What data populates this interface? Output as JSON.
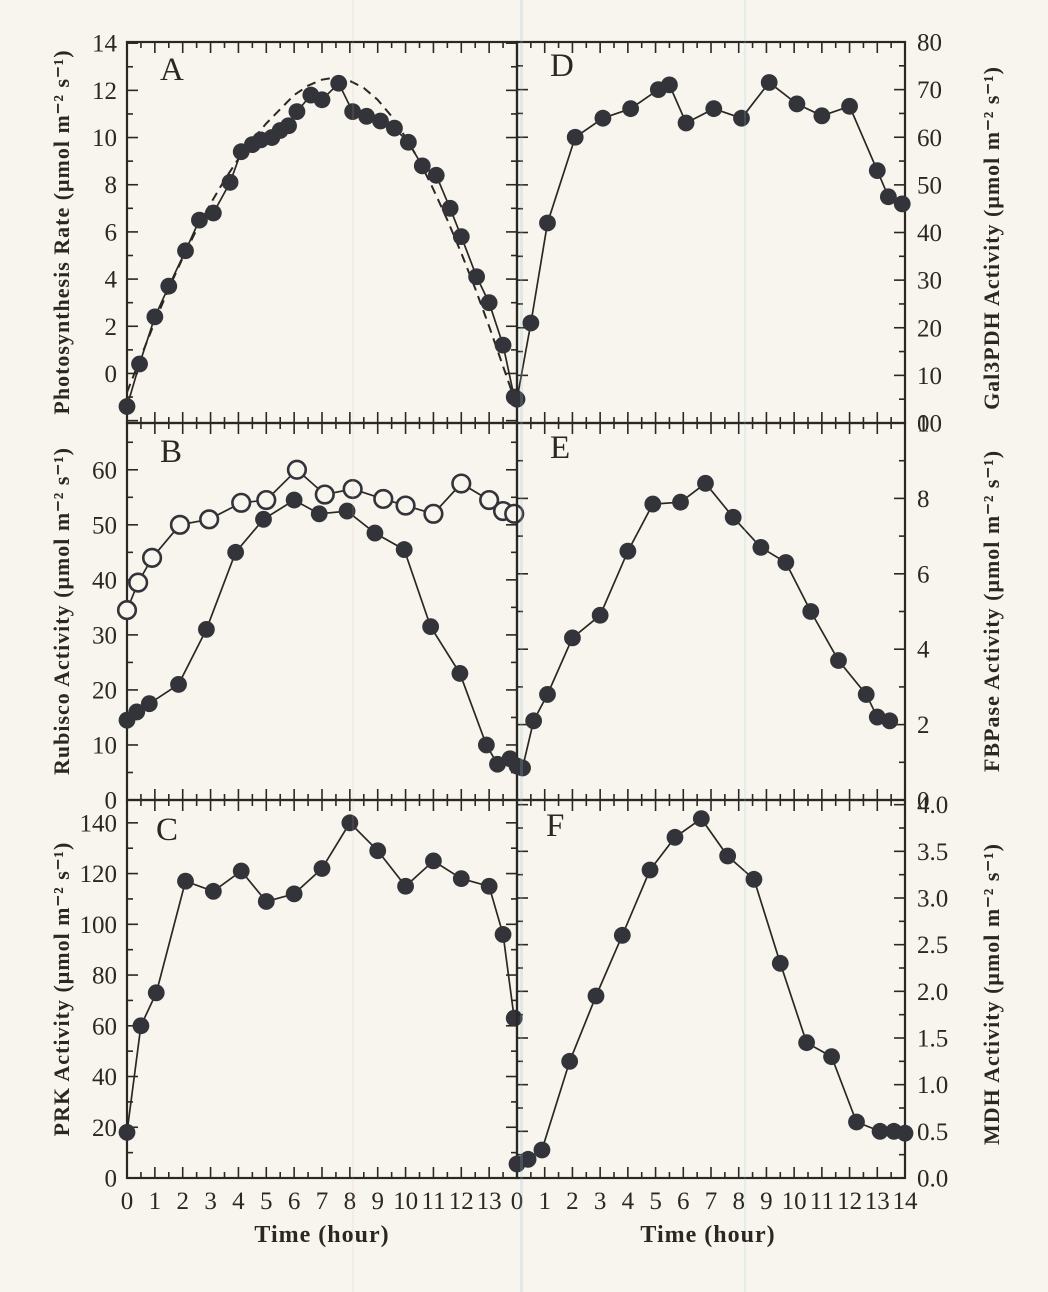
{
  "figure": {
    "background": "#f8f5ee",
    "ink_color": "#2b2722",
    "marker_color": "#33333a",
    "x_axis_label_left": "Time (hour)",
    "x_axis_label_right": "Time (hour)",
    "x_tick_labels_left": [
      "0",
      "1",
      "2",
      "3",
      "4",
      "5",
      "6",
      "7",
      "8",
      "9",
      "10",
      "11",
      "12",
      "13"
    ],
    "x_tick_labels_right": [
      "0",
      "1",
      "2",
      "3",
      "4",
      "5",
      "6",
      "7",
      "8",
      "9",
      "10",
      "11",
      "12",
      "13",
      "14"
    ]
  },
  "chart_data": [
    {
      "panel_label": "A",
      "type": "scatter",
      "position": "top-left",
      "label_side": "left",
      "show_x_labels": false,
      "ylabel": "Photosynthesis Rate (μmol m⁻² s⁻¹)",
      "x_range": [
        0,
        14
      ],
      "y_range": [
        -2.1,
        14.05
      ],
      "y_major": [
        -2,
        0,
        2,
        4,
        6,
        8,
        10,
        12,
        14
      ],
      "y_minor_step": 1,
      "y_labels": [
        [
          0,
          "0"
        ],
        [
          2,
          "2"
        ],
        [
          4,
          "4"
        ],
        [
          6,
          "6"
        ],
        [
          8,
          "8"
        ],
        [
          10,
          "10"
        ],
        [
          12,
          "12"
        ],
        [
          14,
          "14"
        ]
      ],
      "series": [
        {
          "name": "model-curve",
          "style": "dashed",
          "marker": "none",
          "x": [
            0,
            0.5,
            1,
            1.5,
            2,
            2.5,
            3,
            3.5,
            4,
            4.5,
            5,
            5.5,
            6,
            6.5,
            7,
            7.5,
            8,
            8.5,
            9,
            9.5,
            10,
            10.5,
            11,
            11.5,
            12,
            12.5,
            13,
            13.5,
            14
          ],
          "y": [
            -0.8,
            0.7,
            2.2,
            3.6,
            4.9,
            6.1,
            7.2,
            8.2,
            9.1,
            9.9,
            10.6,
            11.2,
            11.8,
            12.2,
            12.45,
            12.55,
            12.4,
            12.1,
            11.6,
            10.9,
            10.0,
            9.0,
            7.8,
            6.5,
            5.1,
            3.6,
            2.0,
            0.3,
            -1.4
          ]
        },
        {
          "name": "measured-photosynthesis",
          "style": "line",
          "marker": "filled",
          "x": [
            0,
            0.45,
            1,
            1.5,
            2.1,
            2.6,
            3.1,
            3.7,
            4.1,
            4.5,
            4.8,
            5.2,
            5.5,
            5.8,
            6.1,
            6.6,
            7.0,
            7.6,
            8.1,
            8.6,
            9.1,
            9.6,
            10.1,
            10.6,
            11.1,
            11.6,
            12.0,
            12.55,
            13.0,
            13.5,
            13.9
          ],
          "y": [
            -1.4,
            0.4,
            2.4,
            3.7,
            5.2,
            6.5,
            6.8,
            8.1,
            9.4,
            9.7,
            9.9,
            10.0,
            10.3,
            10.5,
            11.1,
            11.8,
            11.6,
            12.3,
            11.1,
            10.9,
            10.7,
            10.4,
            9.8,
            8.8,
            8.4,
            7.0,
            5.8,
            4.1,
            3.0,
            1.2,
            -1.0
          ]
        }
      ]
    },
    {
      "panel_label": "D",
      "type": "scatter",
      "position": "top-right",
      "label_side": "right",
      "show_x_labels": false,
      "ylabel": "Gal3PDH Activity (μmol m⁻² s⁻¹)",
      "x_range": [
        0,
        14
      ],
      "y_range": [
        0,
        80
      ],
      "y_major": [
        0,
        10,
        20,
        30,
        40,
        50,
        60,
        70,
        80
      ],
      "y_minor_step": 5,
      "y_labels": [
        [
          0,
          "0"
        ],
        [
          10,
          "10"
        ],
        [
          20,
          "20"
        ],
        [
          30,
          "30"
        ],
        [
          40,
          "40"
        ],
        [
          50,
          "50"
        ],
        [
          60,
          "60"
        ],
        [
          70,
          "70"
        ],
        [
          80,
          "80"
        ]
      ],
      "series": [
        {
          "name": "gal3pdh-activity",
          "style": "line",
          "marker": "filled",
          "x": [
            0,
            0.5,
            1.1,
            2.1,
            3.1,
            4.1,
            5.1,
            5.5,
            6.1,
            7.1,
            8.1,
            9.1,
            10.1,
            11,
            12,
            13,
            13.4,
            13.9
          ],
          "y": [
            5,
            21,
            42,
            60,
            64,
            66,
            70,
            71,
            63,
            66,
            64,
            71.5,
            67,
            64.5,
            66.5,
            53,
            47.5,
            46
          ]
        }
      ]
    },
    {
      "panel_label": "B",
      "type": "scatter",
      "position": "middle-left",
      "label_side": "left",
      "show_x_labels": false,
      "ylabel": "Rubisco Activity (μmol m⁻² s⁻¹)",
      "x_range": [
        0,
        14
      ],
      "y_range": [
        0,
        68.5
      ],
      "y_major": [
        0,
        10,
        20,
        30,
        40,
        50,
        60
      ],
      "y_minor_step": 5,
      "y_labels": [
        [
          0,
          "0"
        ],
        [
          10,
          "10"
        ],
        [
          20,
          "20"
        ],
        [
          30,
          "30"
        ],
        [
          40,
          "40"
        ],
        [
          50,
          "50"
        ],
        [
          60,
          "60"
        ]
      ],
      "series": [
        {
          "name": "rubisco-total-activity",
          "style": "line",
          "marker": "filled",
          "x": [
            0,
            0.35,
            0.8,
            1.85,
            2.85,
            3.9,
            4.9,
            6,
            6.9,
            7.9,
            8.9,
            9.95,
            10.9,
            11.95,
            12.9,
            13.3,
            13.75
          ],
          "y": [
            14.5,
            16,
            17.5,
            21,
            31,
            45,
            51,
            54.5,
            52,
            52.5,
            48.5,
            45.5,
            31.5,
            23,
            10,
            6.5,
            7.5
          ]
        },
        {
          "name": "rubisco-initial-activity",
          "style": "line",
          "marker": "open",
          "x": [
            0,
            0.4,
            0.9,
            1.9,
            2.95,
            4.1,
            5,
            6.1,
            7.1,
            8.1,
            9.2,
            10,
            11,
            12,
            13,
            13.5,
            13.9
          ],
          "y": [
            34.5,
            39.5,
            44,
            50,
            51,
            54,
            54.5,
            60,
            55.5,
            56.5,
            54.7,
            53.5,
            52,
            57.5,
            54.5,
            52.5,
            52
          ]
        }
      ]
    },
    {
      "panel_label": "E",
      "type": "scatter",
      "position": "middle-right",
      "label_side": "right",
      "show_x_labels": false,
      "ylabel": "FBPase Activity (μmol m⁻² s⁻¹)",
      "x_range": [
        0,
        14
      ],
      "y_range": [
        0,
        10
      ],
      "y_major": [
        0,
        2,
        4,
        6,
        8,
        10
      ],
      "y_minor_step": 1,
      "y_labels": [
        [
          0,
          "0"
        ],
        [
          2,
          "2"
        ],
        [
          4,
          "4"
        ],
        [
          6,
          "6"
        ],
        [
          8,
          "8"
        ],
        [
          10,
          "10"
        ]
      ],
      "series": [
        {
          "name": "fbpase-activity",
          "style": "line",
          "marker": "filled",
          "x": [
            0,
            0.2,
            0.6,
            1.1,
            2,
            3,
            4,
            4.9,
            5.9,
            6.8,
            7.8,
            8.8,
            9.7,
            10.6,
            11.6,
            12.6,
            13.0,
            13.45
          ],
          "y": [
            0.9,
            0.85,
            2.1,
            2.8,
            4.3,
            4.9,
            6.6,
            7.85,
            7.9,
            8.4,
            7.5,
            6.7,
            6.3,
            5.0,
            3.7,
            2.8,
            2.2,
            2.1
          ]
        }
      ]
    },
    {
      "panel_label": "C",
      "type": "scatter",
      "position": "bottom-left",
      "label_side": "left",
      "show_x_labels": true,
      "ylabel": "PRK Activity (μmol m⁻² s⁻¹)",
      "x_range": [
        0,
        14
      ],
      "y_range": [
        0,
        149
      ],
      "y_major": [
        0,
        20,
        40,
        60,
        80,
        100,
        120,
        140
      ],
      "y_minor_step": 10,
      "y_labels": [
        [
          0,
          "0"
        ],
        [
          20,
          "20"
        ],
        [
          40,
          "40"
        ],
        [
          60,
          "60"
        ],
        [
          80,
          "80"
        ],
        [
          100,
          "100"
        ],
        [
          120,
          "120"
        ],
        [
          140,
          "140"
        ]
      ],
      "series": [
        {
          "name": "prk-activity",
          "style": "line",
          "marker": "filled",
          "x": [
            0,
            0.5,
            1.05,
            2.1,
            3.1,
            4.1,
            5,
            6,
            7,
            8,
            9,
            10,
            11,
            12,
            13,
            13.5,
            13.9
          ],
          "y": [
            18,
            60,
            73,
            117,
            113,
            121,
            109,
            112,
            122,
            140,
            129,
            115,
            125,
            118,
            115,
            96,
            63
          ]
        }
      ]
    },
    {
      "panel_label": "F",
      "type": "scatter",
      "position": "bottom-right",
      "label_side": "right",
      "show_x_labels": true,
      "ylabel": "MDH Activity (μmol m⁻² s⁻¹)",
      "x_range": [
        0,
        14
      ],
      "y_range": [
        0,
        4.05
      ],
      "y_major": [
        0,
        0.5,
        1,
        1.5,
        2,
        2.5,
        3,
        3.5,
        4
      ],
      "y_minor_step": 0.25,
      "y_labels": [
        [
          0,
          "0.0"
        ],
        [
          0.5,
          "0.5"
        ],
        [
          1,
          "1.0"
        ],
        [
          1.5,
          "1.5"
        ],
        [
          2,
          "2.0"
        ],
        [
          2.5,
          "2.5"
        ],
        [
          3,
          "3.0"
        ],
        [
          3.5,
          "3.5"
        ],
        [
          4,
          "4.0"
        ]
      ],
      "series": [
        {
          "name": "mdh-activity",
          "style": "line",
          "marker": "filled",
          "x": [
            0,
            0.4,
            0.9,
            1.9,
            2.85,
            3.8,
            4.8,
            5.7,
            6.65,
            7.6,
            8.55,
            9.5,
            10.45,
            11.35,
            12.25,
            13.1,
            13.6,
            14
          ],
          "y": [
            0.15,
            0.2,
            0.3,
            1.25,
            1.95,
            2.6,
            3.3,
            3.65,
            3.85,
            3.45,
            3.2,
            2.3,
            1.45,
            1.3,
            0.6,
            0.5,
            0.5,
            0.48
          ]
        }
      ]
    }
  ]
}
